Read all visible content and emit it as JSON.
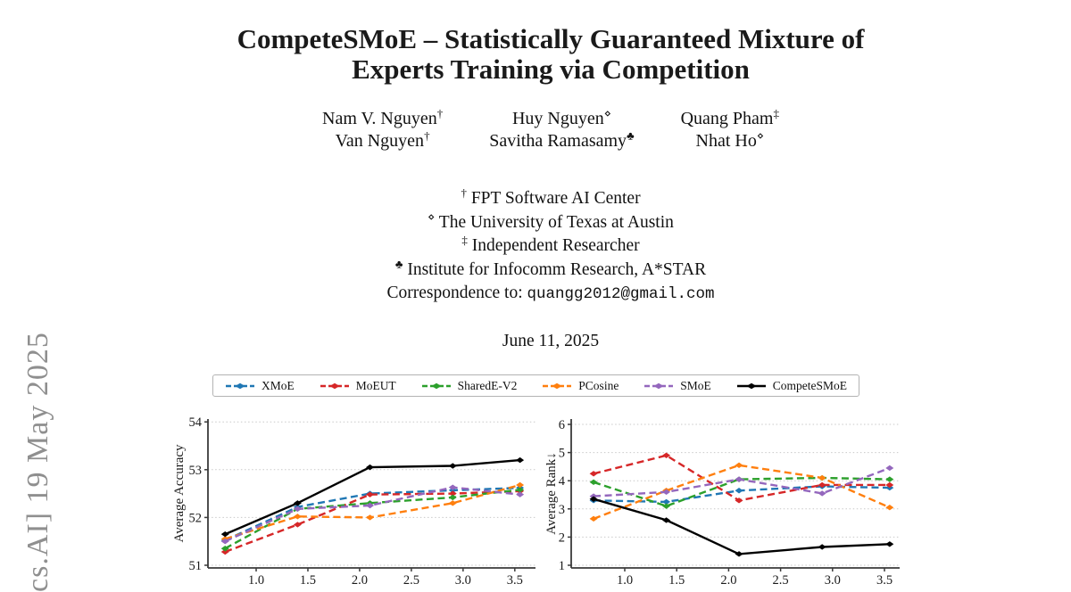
{
  "watermark": {
    "text": "cs.AI]  19 May 2025",
    "color": "#8f8f8f"
  },
  "paper": {
    "title_line1": "CompeteSMoE – Statistically Guaranteed Mixture of",
    "title_line2": "Experts Training via Competition",
    "authors": [
      {
        "name": "Nam V. Nguyen",
        "mark": "†"
      },
      {
        "name": "Huy Nguyen",
        "mark": "⋄"
      },
      {
        "name": "Quang Pham",
        "mark": "‡"
      },
      {
        "name": "Van Nguyen",
        "mark": "†"
      },
      {
        "name": "Savitha Ramasamy",
        "mark": "♣"
      },
      {
        "name": "Nhat Ho",
        "mark": "⋄"
      }
    ],
    "affiliations": [
      {
        "mark": "†",
        "text": "FPT Software AI Center"
      },
      {
        "mark": "⋄",
        "text": "The University of Texas at Austin"
      },
      {
        "mark": "‡",
        "text": "Independent Researcher"
      },
      {
        "mark": "♣",
        "text": "Institute for Infocomm Research, A*STAR"
      }
    ],
    "correspondence_label": "Correspondence to: ",
    "correspondence_email": "quangg2012@gmail.com",
    "date": "June 11, 2025"
  },
  "chart_data": [
    {
      "type": "line",
      "title": "",
      "xlabel": "",
      "ylabel": "Average Accuracy",
      "x": [
        0.7,
        1.4,
        2.1,
        2.9,
        3.55
      ],
      "xticks": [
        1.0,
        1.5,
        2.0,
        2.5,
        3.0,
        3.5
      ],
      "yticks": [
        51,
        52,
        53,
        54
      ],
      "xlim": [
        0.534,
        3.7
      ],
      "ylim": [
        50.944,
        54.06
      ],
      "grid": "horizontal-dotted",
      "legend_position": "top-outside",
      "series": [
        {
          "name": "XMoE",
          "color": "#1f77b4",
          "dash": true,
          "values": [
            51.52,
            52.22,
            52.5,
            52.57,
            52.62
          ]
        },
        {
          "name": "MoEUT",
          "color": "#d62728",
          "dash": true,
          "values": [
            51.28,
            51.85,
            52.48,
            52.5,
            52.55
          ]
        },
        {
          "name": "SharedE-V2",
          "color": "#2ca02c",
          "dash": true,
          "values": [
            51.35,
            52.18,
            52.3,
            52.42,
            52.58
          ]
        },
        {
          "name": "PCosine",
          "color": "#ff7f0e",
          "dash": true,
          "values": [
            51.55,
            52.02,
            52.0,
            52.3,
            52.68
          ]
        },
        {
          "name": "SMoE",
          "color": "#9467bd",
          "dash": true,
          "values": [
            51.5,
            52.18,
            52.25,
            52.63,
            52.48
          ]
        },
        {
          "name": "CompeteSMoE",
          "color": "#000000",
          "dash": false,
          "values": [
            51.65,
            52.3,
            53.05,
            53.08,
            53.2
          ]
        }
      ]
    },
    {
      "type": "line",
      "title": "",
      "xlabel": "",
      "ylabel": "Average Rank↓",
      "x": [
        0.7,
        1.4,
        2.1,
        2.9,
        3.55
      ],
      "xticks": [
        1.0,
        1.5,
        2.0,
        2.5,
        3.0,
        3.5
      ],
      "yticks": [
        1,
        2,
        3,
        4,
        5,
        6
      ],
      "xlim": [
        0.4845,
        3.646
      ],
      "ylim": [
        0.905,
        6.19
      ],
      "grid": "horizontal-dotted",
      "legend_position": "top-outside",
      "series": [
        {
          "name": "XMoE",
          "color": "#1f77b4",
          "dash": true,
          "values": [
            3.3,
            3.25,
            3.65,
            3.8,
            3.75
          ]
        },
        {
          "name": "MoEUT",
          "color": "#d62728",
          "dash": true,
          "values": [
            4.25,
            4.9,
            3.3,
            3.85,
            3.85
          ]
        },
        {
          "name": "SharedE-V2",
          "color": "#2ca02c",
          "dash": true,
          "values": [
            3.95,
            3.1,
            4.05,
            4.1,
            4.05
          ]
        },
        {
          "name": "PCosine",
          "color": "#ff7f0e",
          "dash": true,
          "values": [
            2.65,
            3.65,
            4.55,
            4.1,
            3.05
          ]
        },
        {
          "name": "SMoE",
          "color": "#9467bd",
          "dash": true,
          "values": [
            3.45,
            3.6,
            4.05,
            3.55,
            4.45
          ]
        },
        {
          "name": "CompeteSMoE",
          "color": "#000000",
          "dash": false,
          "values": [
            3.35,
            2.6,
            1.4,
            1.65,
            1.75
          ]
        }
      ]
    }
  ]
}
